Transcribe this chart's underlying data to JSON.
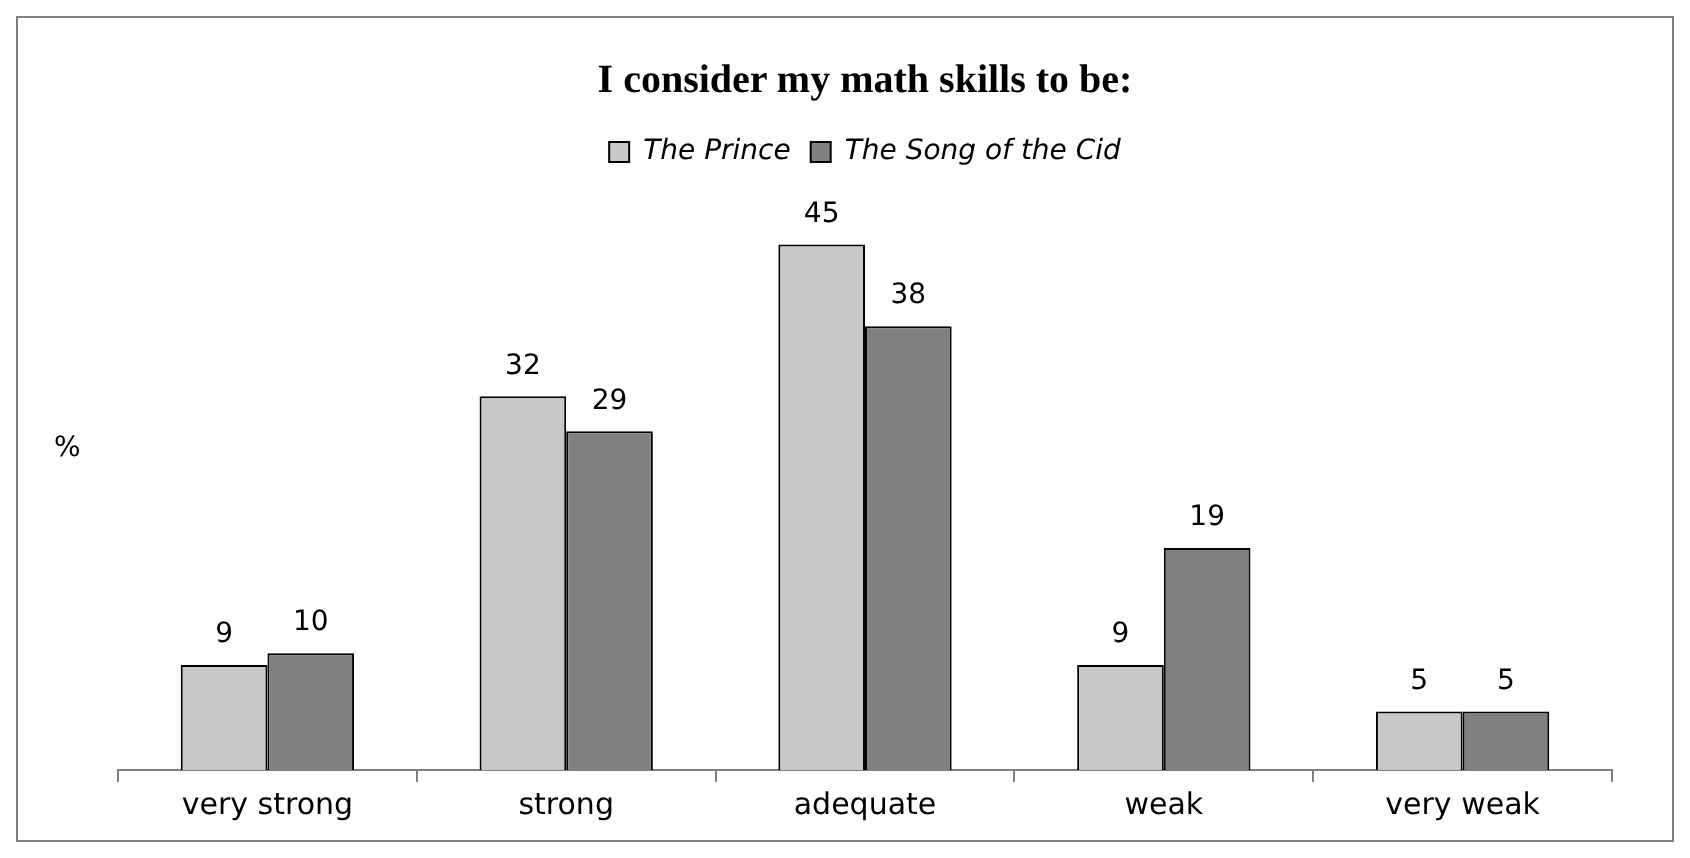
{
  "chart_data": {
    "type": "bar",
    "title": "I consider my math skills to be:",
    "ylabel": "%",
    "categories": [
      "very strong",
      "strong",
      "adequate",
      "weak",
      "very weak"
    ],
    "series": [
      {
        "name": "The Prince",
        "color": "#c8c8c8",
        "values": [
          9,
          32,
          45,
          9,
          5
        ]
      },
      {
        "name": "The Song of the Cid",
        "color": "#808080",
        "values": [
          10,
          29,
          38,
          19,
          5
        ]
      }
    ],
    "data_labels": true,
    "legend": "top",
    "grid": false,
    "tick_labels": "x"
  }
}
